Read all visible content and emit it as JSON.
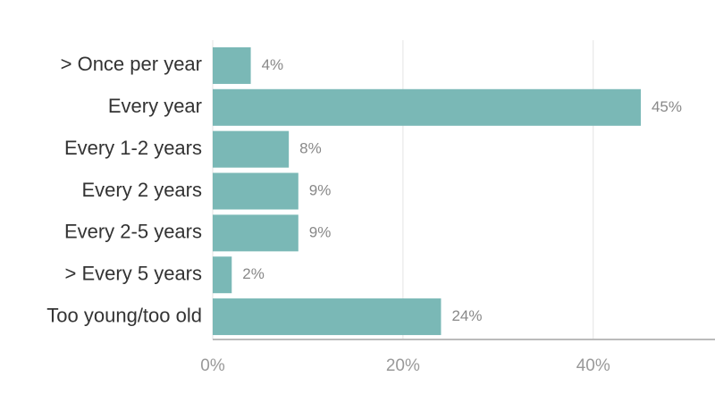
{
  "chart_data": {
    "type": "bar",
    "orientation": "horizontal",
    "categories": [
      "> Once per year",
      "Every year",
      "Every 1-2 years",
      "Every 2 years",
      "Every 2-5 years",
      "> Every 5 years",
      "Too young/too old"
    ],
    "values": [
      4,
      45,
      8,
      9,
      9,
      2,
      24
    ],
    "value_labels": [
      "4%",
      "45%",
      "8%",
      "9%",
      "9%",
      "2%",
      "24%"
    ],
    "color": "#7ab8b6",
    "xlim": [
      0,
      52.8
    ],
    "xticks": [
      {
        "value": 0,
        "label": "0%"
      },
      {
        "value": 20,
        "label": "20%"
      },
      {
        "value": 40,
        "label": "40%"
      }
    ],
    "grid": true
  }
}
